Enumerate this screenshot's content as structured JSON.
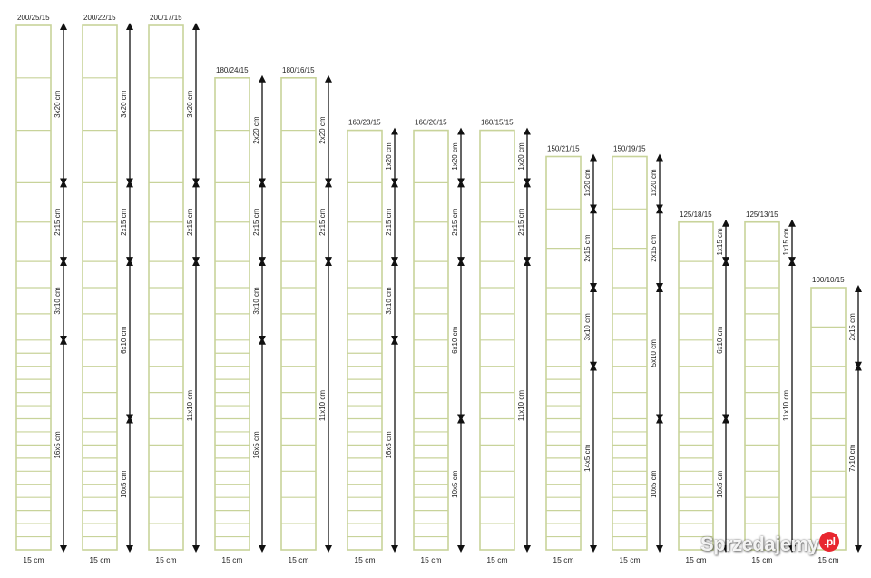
{
  "colors": {
    "frame": "#c8d39a",
    "arrow": "#111111",
    "text": "#222222"
  },
  "panels": [
    {
      "label": "200/25/15",
      "width_label": "15 cm",
      "spacing": [
        20,
        20,
        20,
        15,
        15,
        10,
        10,
        10,
        5,
        5,
        5,
        5,
        5,
        5,
        5,
        5,
        5,
        5,
        5,
        5,
        5,
        5,
        5,
        5
      ],
      "dims": [
        {
          "label": "3x20 cm",
          "side": "right"
        },
        {
          "label": "2x15 cm",
          "side": "right"
        },
        {
          "label": "3x10 cm",
          "side": "right"
        },
        {
          "label": "16x5 cm",
          "side": "right"
        }
      ],
      "breaks": [
        0,
        3,
        5,
        8,
        24
      ]
    },
    {
      "label": "200/22/15",
      "width_label": "15 cm",
      "spacing": [
        20,
        20,
        20,
        15,
        15,
        10,
        10,
        10,
        10,
        10,
        10,
        5,
        5,
        5,
        5,
        5,
        5,
        5,
        5,
        5,
        5
      ],
      "dims": [
        {
          "label": "3x20 cm"
        },
        {
          "label": "2x15 cm"
        },
        {
          "label": "6x10 cm"
        },
        {
          "label": "10x5 cm"
        }
      ],
      "breaks": [
        0,
        3,
        5,
        11,
        21
      ]
    },
    {
      "label": "200/17/15",
      "width_label": "15 cm",
      "spacing": [
        20,
        20,
        20,
        15,
        15,
        10,
        10,
        10,
        10,
        10,
        10,
        10,
        10,
        10,
        10,
        10
      ],
      "dims": [
        {
          "label": "3x20 cm"
        },
        {
          "label": "2x15 cm"
        },
        {
          "label": "11x10 cm"
        }
      ],
      "breaks": [
        0,
        3,
        5,
        16
      ]
    },
    {
      "label": "180/24/15",
      "width_label": "15 cm",
      "spacing": [
        20,
        20,
        15,
        15,
        10,
        10,
        10,
        5,
        5,
        5,
        5,
        5,
        5,
        5,
        5,
        5,
        5,
        5,
        5,
        5,
        5,
        5,
        5
      ],
      "dims": [
        {
          "label": "2x20 cm"
        },
        {
          "label": "2x15 cm"
        },
        {
          "label": "3x10 cm"
        },
        {
          "label": "16x5 cm"
        }
      ],
      "breaks": [
        0,
        2,
        4,
        7,
        23
      ]
    },
    {
      "label": "180/16/15",
      "width_label": "15 cm",
      "spacing": [
        20,
        20,
        15,
        15,
        10,
        10,
        10,
        10,
        10,
        10,
        10,
        10,
        10,
        10,
        10
      ],
      "dims": [
        {
          "label": "2x20 cm"
        },
        {
          "label": "2x15 cm"
        },
        {
          "label": "11x10 cm"
        }
      ],
      "breaks": [
        0,
        2,
        4,
        15
      ]
    },
    {
      "label": "160/23/15",
      "width_label": "15 cm",
      "spacing": [
        20,
        15,
        15,
        10,
        10,
        10,
        5,
        5,
        5,
        5,
        5,
        5,
        5,
        5,
        5,
        5,
        5,
        5,
        5,
        5,
        5,
        5
      ],
      "dims": [
        {
          "label": "1x20 cm"
        },
        {
          "label": "2x15 cm"
        },
        {
          "label": "3x10 cm"
        },
        {
          "label": "16x5 cm"
        }
      ],
      "breaks": [
        0,
        1,
        3,
        6,
        22
      ]
    },
    {
      "label": "160/20/15",
      "width_label": "15 cm",
      "spacing": [
        20,
        15,
        15,
        10,
        10,
        10,
        10,
        10,
        10,
        5,
        5,
        5,
        5,
        5,
        5,
        5,
        5,
        5,
        5
      ],
      "dims": [
        {
          "label": "1x20 cm"
        },
        {
          "label": "2x15 cm"
        },
        {
          "label": "6x10 cm"
        },
        {
          "label": "10x5 cm"
        }
      ],
      "breaks": [
        0,
        1,
        3,
        9,
        19
      ]
    },
    {
      "label": "160/15/15",
      "width_label": "15 cm",
      "spacing": [
        20,
        15,
        15,
        10,
        10,
        10,
        10,
        10,
        10,
        10,
        10,
        10,
        10,
        10
      ],
      "dims": [
        {
          "label": "1x20 cm"
        },
        {
          "label": "2x15 cm"
        },
        {
          "label": "11x10 cm"
        }
      ],
      "breaks": [
        0,
        1,
        3,
        14
      ]
    },
    {
      "label": "150/21/15",
      "width_label": "15 cm",
      "spacing": [
        20,
        15,
        15,
        10,
        10,
        10,
        5,
        5,
        5,
        5,
        5,
        5,
        5,
        5,
        5,
        5,
        5,
        5,
        5,
        5
      ],
      "dims": [
        {
          "label": "1x20 cm"
        },
        {
          "label": "2x15 cm"
        },
        {
          "label": "3x10 cm"
        },
        {
          "label": "14x5 cm"
        }
      ],
      "breaks": [
        0,
        1,
        3,
        6,
        20
      ]
    },
    {
      "label": "150/19/15",
      "width_label": "15 cm",
      "spacing": [
        20,
        15,
        15,
        10,
        10,
        10,
        10,
        10,
        5,
        5,
        5,
        5,
        5,
        5,
        5,
        5,
        5,
        5
      ],
      "dims": [
        {
          "label": "1x20 cm"
        },
        {
          "label": "2x15 cm"
        },
        {
          "label": "5x10 cm"
        },
        {
          "label": "10x5 cm"
        }
      ],
      "breaks": [
        0,
        1,
        3,
        8,
        18
      ]
    },
    {
      "label": "125/18/15",
      "width_label": "15 cm",
      "spacing": [
        15,
        10,
        10,
        10,
        10,
        10,
        10,
        5,
        5,
        5,
        5,
        5,
        5,
        5,
        5,
        5,
        5
      ],
      "dims": [
        {
          "label": "1x15 cm"
        },
        {
          "label": "6x10 cm"
        },
        {
          "label": "10x5 cm"
        }
      ],
      "breaks": [
        0,
        1,
        7,
        17
      ]
    },
    {
      "label": "125/13/15",
      "width_label": "15 cm",
      "spacing": [
        15,
        10,
        10,
        10,
        10,
        10,
        10,
        10,
        10,
        10,
        10,
        10
      ],
      "dims": [
        {
          "label": "1x15 cm"
        },
        {
          "label": "11x10 cm"
        }
      ],
      "breaks": [
        0,
        1,
        12
      ]
    },
    {
      "label": "100/10/15",
      "width_label": "15 cm",
      "spacing": [
        15,
        15,
        10,
        10,
        10,
        10,
        10,
        10,
        10
      ],
      "dims": [
        {
          "label": "2x15 cm"
        },
        {
          "label": "7x10 cm"
        }
      ],
      "breaks": [
        0,
        2,
        9
      ]
    }
  ],
  "watermark": {
    "text": "Sprzedajemy",
    "suffix": ".pl"
  }
}
